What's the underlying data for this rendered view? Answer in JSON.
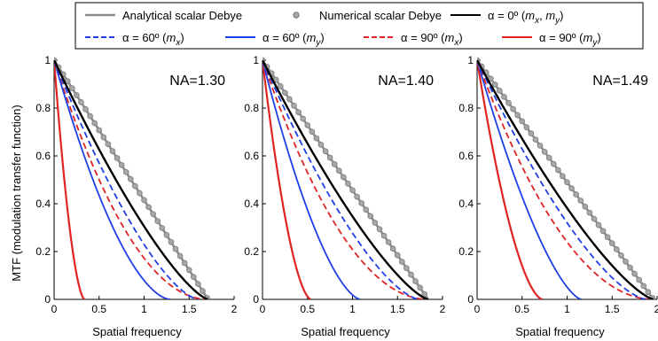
{
  "chart_data": {
    "type": "line",
    "ylabel": "MTF (modulation transfer function)",
    "legend": {
      "placement": "top",
      "entries": [
        {
          "label": "Analytical scalar Debye",
          "style": "solid",
          "marker": "none",
          "color": "#8c8c8c"
        },
        {
          "label": "Numerical scalar Debye",
          "style": "none",
          "marker": "circle",
          "color": "#8c8c8c"
        },
        {
          "label": "α = 0º (m",
          "sub1": "x",
          "mid": ", m",
          "sub2": "y",
          "end": ")",
          "style": "solid",
          "marker": "none",
          "color": "#000000"
        },
        {
          "label": "α = 60º (m",
          "sub1": "x",
          "end": ")",
          "style": "dashed",
          "marker": "none",
          "color": "#1f3fe6"
        },
        {
          "label": "α = 60º (m",
          "sub1": "y",
          "end": ")",
          "style": "solid",
          "marker": "none",
          "color": "#1f3fe6"
        },
        {
          "label": "α = 90º (m",
          "sub1": "x",
          "end": ")",
          "style": "dashed",
          "marker": "none",
          "color": "#e02323"
        },
        {
          "label": "α = 90º (m",
          "sub1": "y",
          "end": ")",
          "style": "solid",
          "marker": "none",
          "color": "#e02323"
        }
      ]
    },
    "panels": [
      {
        "annotation": "NA=1.30",
        "xlabel": "Spatial frequency",
        "xlim": [
          0,
          2
        ],
        "ylim": [
          0,
          1
        ],
        "xticks": [
          "0",
          "0.5",
          "1",
          "1.5",
          "2"
        ],
        "yticks": [
          "0",
          "0.2",
          "0.4",
          "0.6",
          "0.8",
          "1"
        ],
        "series": [
          {
            "cutoff": 1.71,
            "exponent": 1.0,
            "kind": "analytical"
          },
          {
            "cutoff": 1.71,
            "exponent": 1.0,
            "kind": "numerical"
          },
          {
            "cutoff": 1.71,
            "exponent": 1.35,
            "kind": "alpha0"
          },
          {
            "cutoff": 1.6,
            "exponent": 1.5,
            "kind": "alpha60x"
          },
          {
            "cutoff": 1.29,
            "exponent": 1.7,
            "kind": "alpha60y"
          },
          {
            "cutoff": 1.71,
            "exponent": 2.0,
            "kind": "alpha90x"
          },
          {
            "cutoff": 0.34,
            "exponent": 1.7,
            "kind": "alpha90y"
          }
        ]
      },
      {
        "annotation": "NA=1.40",
        "xlabel": "Spatial frequency",
        "xlim": [
          0,
          2
        ],
        "ylim": [
          0,
          1
        ],
        "xticks": [
          "0",
          "0.5",
          "1",
          "1.5",
          "2"
        ],
        "yticks": [
          "0",
          "0.2",
          "0.4",
          "0.6",
          "0.8",
          "1"
        ],
        "series": [
          {
            "cutoff": 1.84,
            "exponent": 1.0,
            "kind": "analytical"
          },
          {
            "cutoff": 1.84,
            "exponent": 1.0,
            "kind": "numerical"
          },
          {
            "cutoff": 1.84,
            "exponent": 1.35,
            "kind": "alpha0"
          },
          {
            "cutoff": 1.74,
            "exponent": 1.5,
            "kind": "alpha60x"
          },
          {
            "cutoff": 1.09,
            "exponent": 1.6,
            "kind": "alpha60y"
          },
          {
            "cutoff": 1.84,
            "exponent": 2.0,
            "kind": "alpha90x"
          },
          {
            "cutoff": 0.54,
            "exponent": 1.7,
            "kind": "alpha90y"
          }
        ]
      },
      {
        "annotation": "NA=1.49",
        "xlabel": "Spatial frequency",
        "xlim": [
          0,
          2
        ],
        "ylim": [
          0,
          1
        ],
        "xticks": [
          "0",
          "0.5",
          "1",
          "1.5",
          "2"
        ],
        "yticks": [
          "0",
          "0.2",
          "0.4",
          "0.6",
          "0.8",
          "1"
        ],
        "series": [
          {
            "cutoff": 1.96,
            "exponent": 1.0,
            "kind": "analytical"
          },
          {
            "cutoff": 1.96,
            "exponent": 1.0,
            "kind": "numerical"
          },
          {
            "cutoff": 1.96,
            "exponent": 1.35,
            "kind": "alpha0"
          },
          {
            "cutoff": 1.88,
            "exponent": 1.5,
            "kind": "alpha60x"
          },
          {
            "cutoff": 1.16,
            "exponent": 1.5,
            "kind": "alpha60y"
          },
          {
            "cutoff": 1.96,
            "exponent": 2.0,
            "kind": "alpha90x"
          },
          {
            "cutoff": 0.73,
            "exponent": 1.7,
            "kind": "alpha90y"
          }
        ]
      }
    ],
    "styles": {
      "analytical": {
        "color": "#8c8c8c",
        "dash": "",
        "width": 2.6
      },
      "numerical": {
        "color": "#8c8c8c",
        "marker": "circle"
      },
      "alpha0": {
        "color": "#000000",
        "dash": "",
        "width": 2.4
      },
      "alpha60x": {
        "color": "#1f3fe6",
        "dash": "7,4",
        "width": 1.8
      },
      "alpha60y": {
        "color": "#1f3fe6",
        "dash": "",
        "width": 1.8
      },
      "alpha90x": {
        "color": "#e02323",
        "dash": "7,4",
        "width": 1.8
      },
      "alpha90y": {
        "color": "#e02323",
        "dash": "",
        "width": 2.2
      }
    }
  }
}
